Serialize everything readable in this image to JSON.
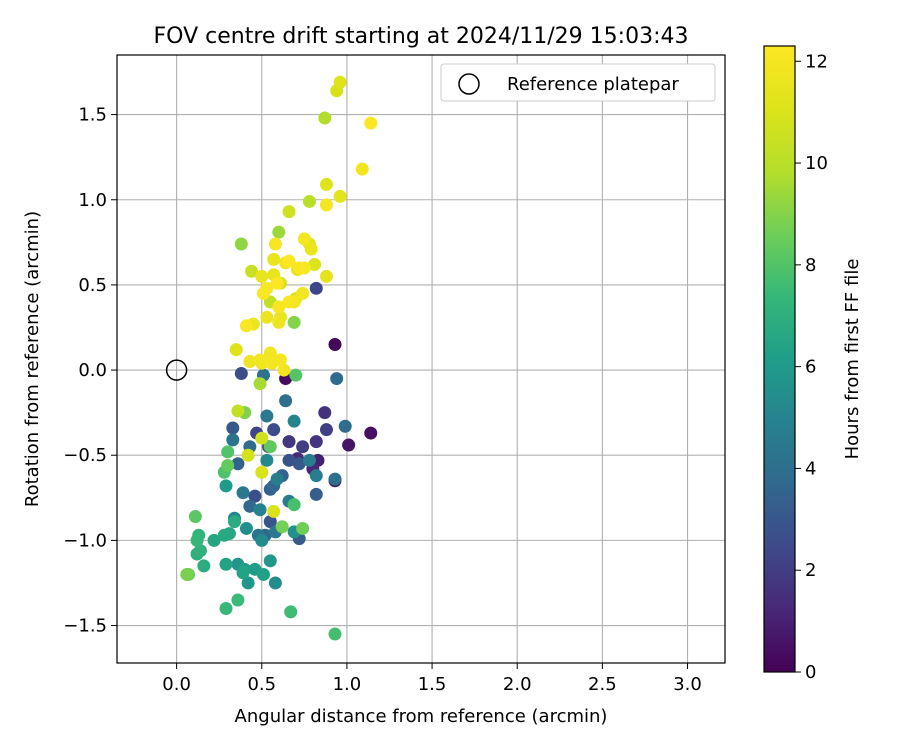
{
  "chart_data": {
    "type": "scatter",
    "title": "FOV centre drift starting at 2024/11/29 15:03:43",
    "xlabel": "Angular distance from reference (arcmin)",
    "ylabel": "Rotation from reference (arcmin)",
    "xlim": [
      -0.35,
      3.22
    ],
    "ylim": [
      -1.72,
      1.85
    ],
    "xticks": [
      0.0,
      0.5,
      1.0,
      1.5,
      2.0,
      2.5,
      3.0
    ],
    "xtick_labels": [
      "0.0",
      "0.5",
      "1.0",
      "1.5",
      "2.0",
      "2.5",
      "3.0"
    ],
    "yticks": [
      -1.5,
      -1.0,
      -0.5,
      0.0,
      0.5,
      1.0,
      1.5
    ],
    "ytick_labels": [
      "−1.5",
      "−1.0",
      "−0.5",
      "0.0",
      "0.5",
      "1.0",
      "1.5"
    ],
    "grid": true,
    "legend": {
      "position": "top-right",
      "label": "Reference platepar"
    },
    "reference_point": {
      "x": 0.0,
      "y": 0.0
    },
    "colorbar": {
      "label": "Hours from first FF file",
      "colormap": "viridis",
      "range": [
        0,
        12.3
      ],
      "ticks": [
        0,
        2,
        4,
        6,
        8,
        10,
        12
      ],
      "tick_labels": [
        "0",
        "2",
        "4",
        "6",
        "8",
        "10",
        "12"
      ]
    },
    "points": [
      {
        "x": 0.93,
        "y": 0.15,
        "h": 0.2
      },
      {
        "x": 0.64,
        "y": -0.05,
        "h": 0.3
      },
      {
        "x": 1.14,
        "y": -0.37,
        "h": 0.5
      },
      {
        "x": 1.01,
        "y": -0.44,
        "h": 0.6
      },
      {
        "x": 0.93,
        "y": -0.65,
        "h": 0.8
      },
      {
        "x": 0.83,
        "y": -0.53,
        "h": 1.0
      },
      {
        "x": 0.8,
        "y": -0.58,
        "h": 1.2
      },
      {
        "x": 0.71,
        "y": -0.52,
        "h": 1.4
      },
      {
        "x": 0.87,
        "y": -0.25,
        "h": 1.6
      },
      {
        "x": 0.82,
        "y": -0.42,
        "h": 1.7
      },
      {
        "x": 0.66,
        "y": -0.42,
        "h": 1.8
      },
      {
        "x": 0.74,
        "y": -0.45,
        "h": 2.0
      },
      {
        "x": 0.88,
        "y": -0.35,
        "h": 2.1
      },
      {
        "x": 0.47,
        "y": -0.37,
        "h": 2.2
      },
      {
        "x": 0.82,
        "y": 0.48,
        "h": 2.3
      },
      {
        "x": 0.54,
        "y": -0.45,
        "h": 2.4
      },
      {
        "x": 0.38,
        "y": -0.02,
        "h": 2.6
      },
      {
        "x": 0.57,
        "y": -0.35,
        "h": 2.6
      },
      {
        "x": 0.46,
        "y": -0.74,
        "h": 2.7
      },
      {
        "x": 0.66,
        "y": -0.53,
        "h": 2.8
      },
      {
        "x": 0.55,
        "y": -0.89,
        "h": 2.9
      },
      {
        "x": 0.33,
        "y": -0.34,
        "h": 3.0
      },
      {
        "x": 0.72,
        "y": -0.55,
        "h": 3.0
      },
      {
        "x": 0.72,
        "y": -0.99,
        "h": 3.2
      },
      {
        "x": 0.82,
        "y": -0.73,
        "h": 3.3
      },
      {
        "x": 0.62,
        "y": -0.62,
        "h": 3.4
      },
      {
        "x": 0.55,
        "y": -0.7,
        "h": 3.5
      },
      {
        "x": 0.36,
        "y": -0.55,
        "h": 3.5
      },
      {
        "x": 0.52,
        "y": -0.97,
        "h": 3.6
      },
      {
        "x": 0.43,
        "y": -0.8,
        "h": 3.7
      },
      {
        "x": 0.57,
        "y": -0.68,
        "h": 3.7
      },
      {
        "x": 0.94,
        "y": -0.05,
        "h": 3.8
      },
      {
        "x": 0.99,
        "y": -0.33,
        "h": 3.9
      },
      {
        "x": 0.43,
        "y": -0.45,
        "h": 3.9
      },
      {
        "x": 0.64,
        "y": -0.18,
        "h": 4.0
      },
      {
        "x": 0.93,
        "y": -0.64,
        "h": 4.0
      },
      {
        "x": 0.51,
        "y": -0.03,
        "h": 4.1
      },
      {
        "x": 0.33,
        "y": -0.41,
        "h": 4.2
      },
      {
        "x": 0.48,
        "y": -0.97,
        "h": 4.3
      },
      {
        "x": 0.39,
        "y": -0.72,
        "h": 4.4
      },
      {
        "x": 0.53,
        "y": -0.27,
        "h": 4.5
      },
      {
        "x": 0.58,
        "y": -0.95,
        "h": 4.5
      },
      {
        "x": 0.66,
        "y": -0.77,
        "h": 4.6
      },
      {
        "x": 0.78,
        "y": -0.53,
        "h": 4.6
      },
      {
        "x": 0.82,
        "y": -0.62,
        "h": 4.7
      },
      {
        "x": 0.59,
        "y": -0.64,
        "h": 4.8
      },
      {
        "x": 0.49,
        "y": -0.82,
        "h": 4.9
      },
      {
        "x": 0.69,
        "y": -0.3,
        "h": 5.0
      },
      {
        "x": 0.34,
        "y": -0.87,
        "h": 5.1
      },
      {
        "x": 0.53,
        "y": -0.53,
        "h": 5.2
      },
      {
        "x": 0.5,
        "y": -1.0,
        "h": 5.3
      },
      {
        "x": 0.58,
        "y": -1.25,
        "h": 5.4
      },
      {
        "x": 0.41,
        "y": -0.93,
        "h": 5.5
      },
      {
        "x": 0.69,
        "y": -0.95,
        "h": 5.6
      },
      {
        "x": 0.36,
        "y": -1.14,
        "h": 5.7
      },
      {
        "x": 0.42,
        "y": -1.25,
        "h": 5.8
      },
      {
        "x": 0.55,
        "y": -1.12,
        "h": 5.9
      },
      {
        "x": 0.29,
        "y": -0.68,
        "h": 6.0
      },
      {
        "x": 0.46,
        "y": -1.17,
        "h": 6.1
      },
      {
        "x": 0.4,
        "y": -1.17,
        "h": 6.2
      },
      {
        "x": 0.51,
        "y": -1.2,
        "h": 6.3
      },
      {
        "x": 0.39,
        "y": -1.19,
        "h": 6.4
      },
      {
        "x": 0.29,
        "y": -1.14,
        "h": 6.4
      },
      {
        "x": 0.22,
        "y": -1.0,
        "h": 6.5
      },
      {
        "x": 0.31,
        "y": -0.96,
        "h": 6.6
      },
      {
        "x": 0.28,
        "y": -0.97,
        "h": 6.7
      },
      {
        "x": 0.34,
        "y": -0.89,
        "h": 6.8
      },
      {
        "x": 0.16,
        "y": -1.15,
        "h": 6.9
      },
      {
        "x": 0.12,
        "y": -1.08,
        "h": 7.0
      },
      {
        "x": 0.14,
        "y": -1.06,
        "h": 7.1
      },
      {
        "x": 0.13,
        "y": -0.97,
        "h": 7.2
      },
      {
        "x": 0.12,
        "y": -1.0,
        "h": 7.3
      },
      {
        "x": 0.29,
        "y": -1.4,
        "h": 7.4
      },
      {
        "x": 0.36,
        "y": -1.35,
        "h": 7.5
      },
      {
        "x": 0.67,
        "y": -1.42,
        "h": 7.6
      },
      {
        "x": 0.93,
        "y": -1.55,
        "h": 7.7
      },
      {
        "x": 0.69,
        "y": -0.79,
        "h": 7.8
      },
      {
        "x": 0.28,
        "y": -0.6,
        "h": 7.9
      },
      {
        "x": 0.3,
        "y": -0.48,
        "h": 8.0
      },
      {
        "x": 0.7,
        "y": -0.03,
        "h": 8.1
      },
      {
        "x": 0.11,
        "y": -0.86,
        "h": 8.2
      },
      {
        "x": 0.55,
        "y": -0.45,
        "h": 8.3
      },
      {
        "x": 0.3,
        "y": -0.56,
        "h": 8.4
      },
      {
        "x": 0.07,
        "y": -1.2,
        "h": 8.5
      },
      {
        "x": 0.74,
        "y": -0.93,
        "h": 8.6
      },
      {
        "x": 0.62,
        "y": -0.92,
        "h": 8.7
      },
      {
        "x": 0.06,
        "y": -1.2,
        "h": 8.8
      },
      {
        "x": 0.4,
        "y": -0.25,
        "h": 8.9
      },
      {
        "x": 0.69,
        "y": 0.28,
        "h": 9.0
      },
      {
        "x": 0.38,
        "y": 0.74,
        "h": 9.2
      },
      {
        "x": 0.6,
        "y": 0.81,
        "h": 9.4
      },
      {
        "x": 0.49,
        "y": -0.08,
        "h": 9.6
      },
      {
        "x": 0.87,
        "y": 1.48,
        "h": 9.8
      },
      {
        "x": 0.78,
        "y": 0.99,
        "h": 10.0
      },
      {
        "x": 0.55,
        "y": 0.4,
        "h": 10.2
      },
      {
        "x": 0.36,
        "y": -0.24,
        "h": 10.3
      },
      {
        "x": 0.44,
        "y": 0.58,
        "h": 10.4
      },
      {
        "x": 0.66,
        "y": 0.93,
        "h": 10.6
      },
      {
        "x": 0.5,
        "y": -0.4,
        "h": 10.7
      },
      {
        "x": 0.42,
        "y": -0.5,
        "h": 10.8
      },
      {
        "x": 0.94,
        "y": 1.64,
        "h": 10.9
      },
      {
        "x": 0.57,
        "y": -0.83,
        "h": 11.0
      },
      {
        "x": 0.5,
        "y": -0.6,
        "h": 11.0
      },
      {
        "x": 0.61,
        "y": 0.51,
        "h": 11.0
      },
      {
        "x": 0.81,
        "y": 0.62,
        "h": 11.1
      },
      {
        "x": 0.88,
        "y": 1.09,
        "h": 11.2
      },
      {
        "x": 0.96,
        "y": 1.69,
        "h": 11.2
      },
      {
        "x": 0.35,
        "y": 0.12,
        "h": 11.2
      },
      {
        "x": 0.7,
        "y": 0.42,
        "h": 11.3
      },
      {
        "x": 0.78,
        "y": 0.74,
        "h": 11.3
      },
      {
        "x": 0.88,
        "y": 0.55,
        "h": 11.4
      },
      {
        "x": 0.96,
        "y": 1.02,
        "h": 11.4
      },
      {
        "x": 0.71,
        "y": 0.59,
        "h": 11.4
      },
      {
        "x": 0.57,
        "y": 0.56,
        "h": 11.5
      },
      {
        "x": 0.5,
        "y": 0.55,
        "h": 11.5
      },
      {
        "x": 0.57,
        "y": 0.65,
        "h": 11.5
      },
      {
        "x": 0.45,
        "y": 0.27,
        "h": 11.6
      },
      {
        "x": 0.61,
        "y": 0.31,
        "h": 11.6
      },
      {
        "x": 0.79,
        "y": 0.71,
        "h": 11.6
      },
      {
        "x": 0.53,
        "y": 0.31,
        "h": 11.7
      },
      {
        "x": 0.6,
        "y": 0.28,
        "h": 11.7
      },
      {
        "x": 0.43,
        "y": 0.05,
        "h": 11.7
      },
      {
        "x": 0.64,
        "y": 0.63,
        "h": 11.8
      },
      {
        "x": 0.5,
        "y": 0.04,
        "h": 11.8
      },
      {
        "x": 0.74,
        "y": 0.45,
        "h": 11.8
      },
      {
        "x": 0.63,
        "y": 0.0,
        "h": 11.8
      },
      {
        "x": 0.49,
        "y": 0.06,
        "h": 11.9
      },
      {
        "x": 0.55,
        "y": 0.1,
        "h": 11.9
      },
      {
        "x": 1.09,
        "y": 1.18,
        "h": 11.9
      },
      {
        "x": 0.69,
        "y": 0.4,
        "h": 11.9
      },
      {
        "x": 0.88,
        "y": 0.97,
        "h": 12.0
      },
      {
        "x": 0.56,
        "y": 0.04,
        "h": 12.0
      },
      {
        "x": 0.61,
        "y": 0.06,
        "h": 12.0
      },
      {
        "x": 0.75,
        "y": 0.77,
        "h": 12.0
      },
      {
        "x": 0.58,
        "y": 0.74,
        "h": 12.1
      },
      {
        "x": 0.66,
        "y": 0.4,
        "h": 12.1
      },
      {
        "x": 0.72,
        "y": 0.6,
        "h": 12.1
      },
      {
        "x": 0.6,
        "y": 0.37,
        "h": 12.1
      },
      {
        "x": 0.41,
        "y": 0.26,
        "h": 12.2
      },
      {
        "x": 0.51,
        "y": 0.45,
        "h": 12.2
      },
      {
        "x": 0.75,
        "y": 0.6,
        "h": 12.2
      },
      {
        "x": 0.53,
        "y": 0.48,
        "h": 12.2
      },
      {
        "x": 1.14,
        "y": 1.45,
        "h": 12.3
      },
      {
        "x": 0.66,
        "y": 0.64,
        "h": 12.3
      },
      {
        "x": 0.59,
        "y": 0.51,
        "h": 12.3
      }
    ]
  }
}
